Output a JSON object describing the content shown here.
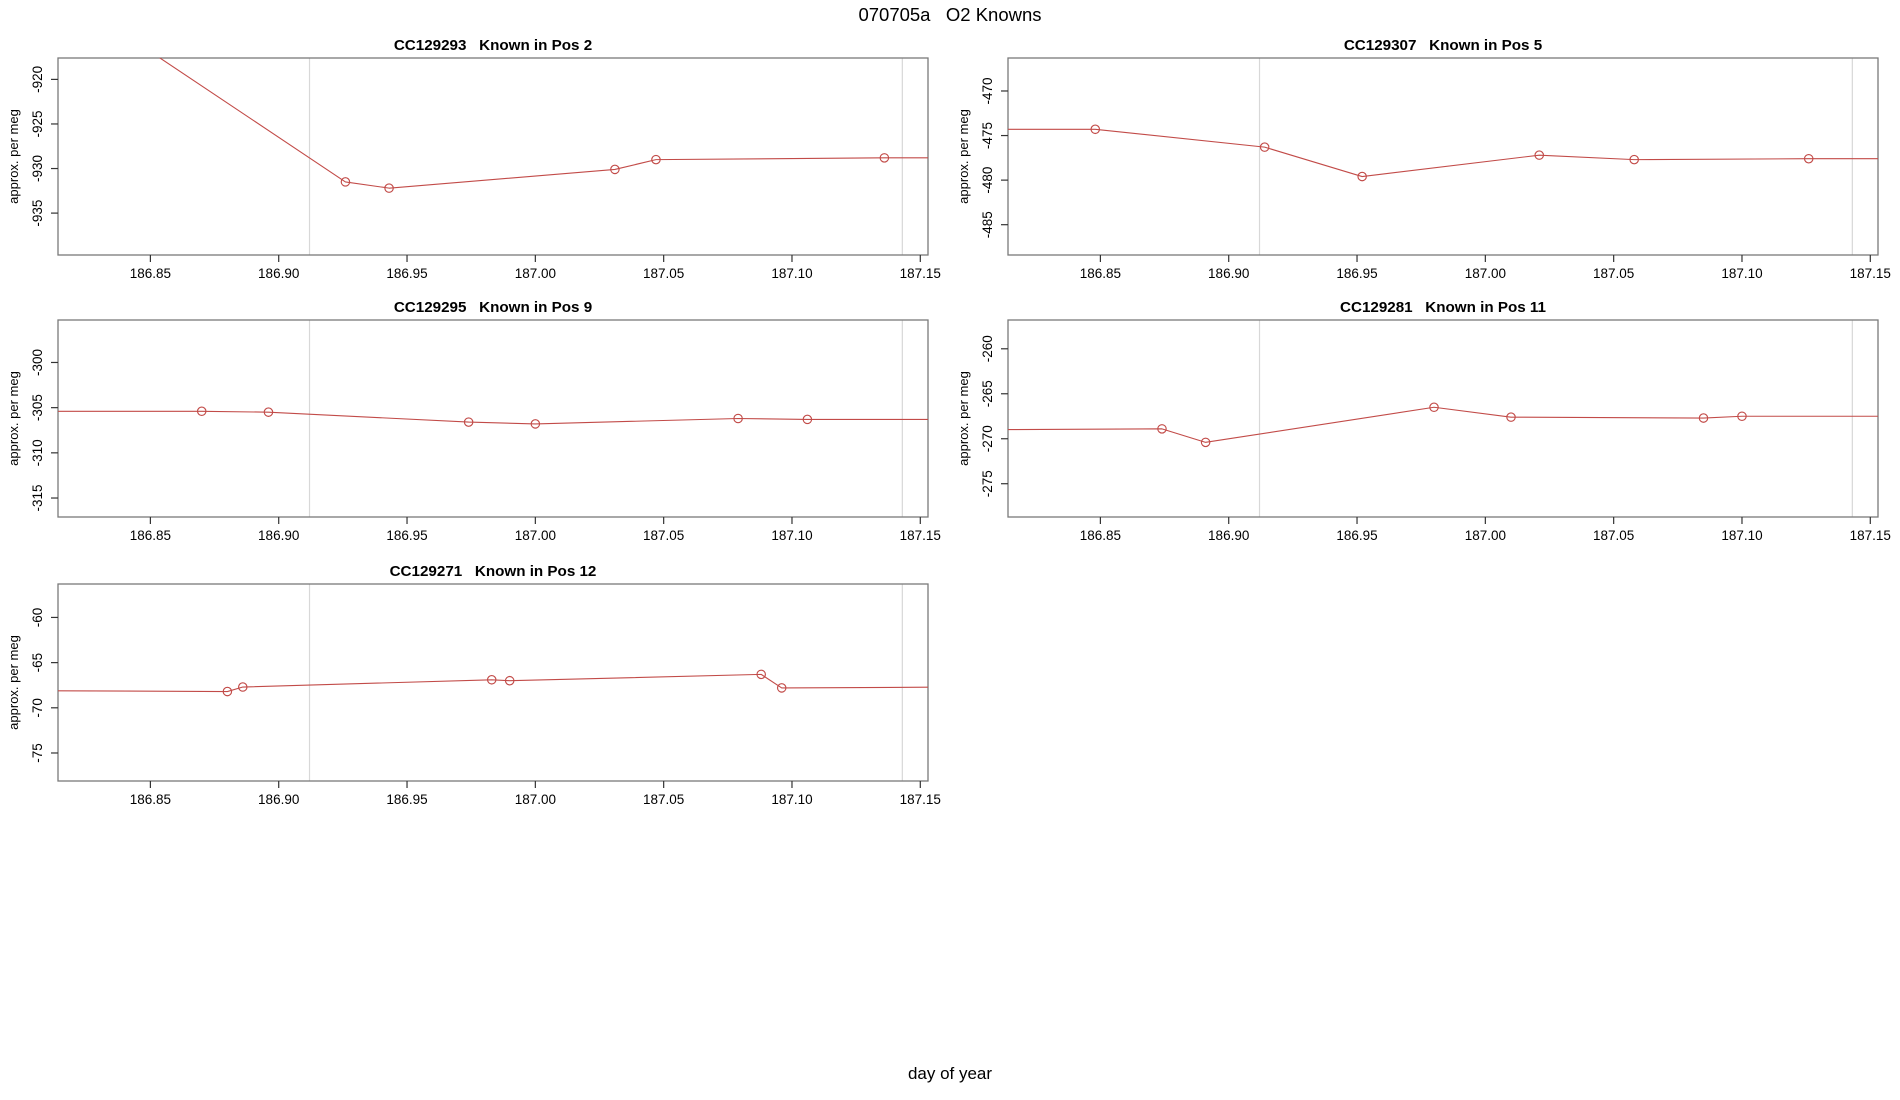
{
  "main_title": "070705a   O2 Knowns",
  "xlabel": "day of year",
  "colors": {
    "line": "#c24b48",
    "grid": "#d8d8d8",
    "box": "#7a7a7a",
    "tick": "#333333"
  },
  "x_axis": {
    "xlim": [
      186.814,
      187.153
    ],
    "ticks": [
      186.85,
      186.9,
      186.95,
      187.0,
      187.05,
      187.1,
      187.15
    ],
    "tick_labels": [
      "186.85",
      "186.90",
      "186.95",
      "187.00",
      "187.05",
      "187.10",
      "187.15"
    ]
  },
  "event_lines": [
    186.912,
    187.143
  ],
  "chart_data": [
    {
      "type": "line",
      "title": "CC129293   Known in Pos 2",
      "ylabel": "approx. per meg",
      "ylim": [
        -939.7,
        -917.6
      ],
      "yticks": [
        -920,
        -925,
        -930,
        -935
      ],
      "ytick_labels": [
        "-920",
        "-925",
        "-930",
        "-935"
      ],
      "points": [
        [
          186.848,
          -916.5
        ],
        [
          186.926,
          -931.5
        ],
        [
          186.943,
          -932.2
        ],
        [
          187.031,
          -930.1
        ],
        [
          187.047,
          -929.0
        ],
        [
          187.136,
          -928.8
        ],
        [
          187.17,
          -928.8
        ]
      ]
    },
    {
      "type": "line",
      "title": "CC129307   Known in Pos 5",
      "ylabel": "approx. per meg",
      "ylim": [
        -488.4,
        -466.3
      ],
      "yticks": [
        -470,
        -475,
        -480,
        -485
      ],
      "ytick_labels": [
        "-470",
        "-475",
        "-480",
        "-485"
      ],
      "points": [
        [
          186.8,
          -474.3
        ],
        [
          186.848,
          -474.3
        ],
        [
          186.914,
          -476.3
        ],
        [
          186.952,
          -479.6
        ],
        [
          187.021,
          -477.2
        ],
        [
          187.058,
          -477.7
        ],
        [
          187.126,
          -477.6
        ],
        [
          187.17,
          -477.6
        ]
      ]
    },
    {
      "type": "line",
      "title": "CC129295   Known in Pos 9",
      "ylabel": "approx. per meg",
      "ylim": [
        -317.1,
        -295.3
      ],
      "yticks": [
        -300,
        -305,
        -310,
        -315
      ],
      "ytick_labels": [
        "-300",
        "-305",
        "-310",
        "-315"
      ],
      "points": [
        [
          186.8,
          -305.4
        ],
        [
          186.87,
          -305.4
        ],
        [
          186.896,
          -305.5
        ],
        [
          186.974,
          -306.6
        ],
        [
          187.0,
          -306.8
        ],
        [
          187.079,
          -306.2
        ],
        [
          187.106,
          -306.3
        ],
        [
          187.17,
          -306.3
        ]
      ]
    },
    {
      "type": "line",
      "title": "CC129281   Known in Pos 11",
      "ylabel": "approx. per meg",
      "ylim": [
        -278.7,
        -256.8
      ],
      "yticks": [
        -260,
        -265,
        -270,
        -275
      ],
      "ytick_labels": [
        "-260",
        "-265",
        "-270",
        "-275"
      ],
      "points": [
        [
          186.8,
          -269.0
        ],
        [
          186.874,
          -268.9
        ],
        [
          186.891,
          -270.4
        ],
        [
          186.98,
          -266.5
        ],
        [
          187.01,
          -267.6
        ],
        [
          187.085,
          -267.7
        ],
        [
          187.1,
          -267.5
        ],
        [
          187.17,
          -267.5
        ]
      ]
    },
    {
      "type": "line",
      "title": "CC129271   Known in Pos 12",
      "ylabel": "approx. per meg",
      "ylim": [
        -78.1,
        -56.3
      ],
      "yticks": [
        -60,
        -65,
        -70,
        -75
      ],
      "ytick_labels": [
        "-60",
        "-65",
        "-70",
        "-75"
      ],
      "points": [
        [
          186.8,
          -68.1
        ],
        [
          186.88,
          -68.2
        ],
        [
          186.886,
          -67.7
        ],
        [
          186.983,
          -66.9
        ],
        [
          186.99,
          -67.0
        ],
        [
          187.088,
          -66.3
        ],
        [
          187.096,
          -67.8
        ],
        [
          187.17,
          -67.7
        ]
      ]
    }
  ]
}
